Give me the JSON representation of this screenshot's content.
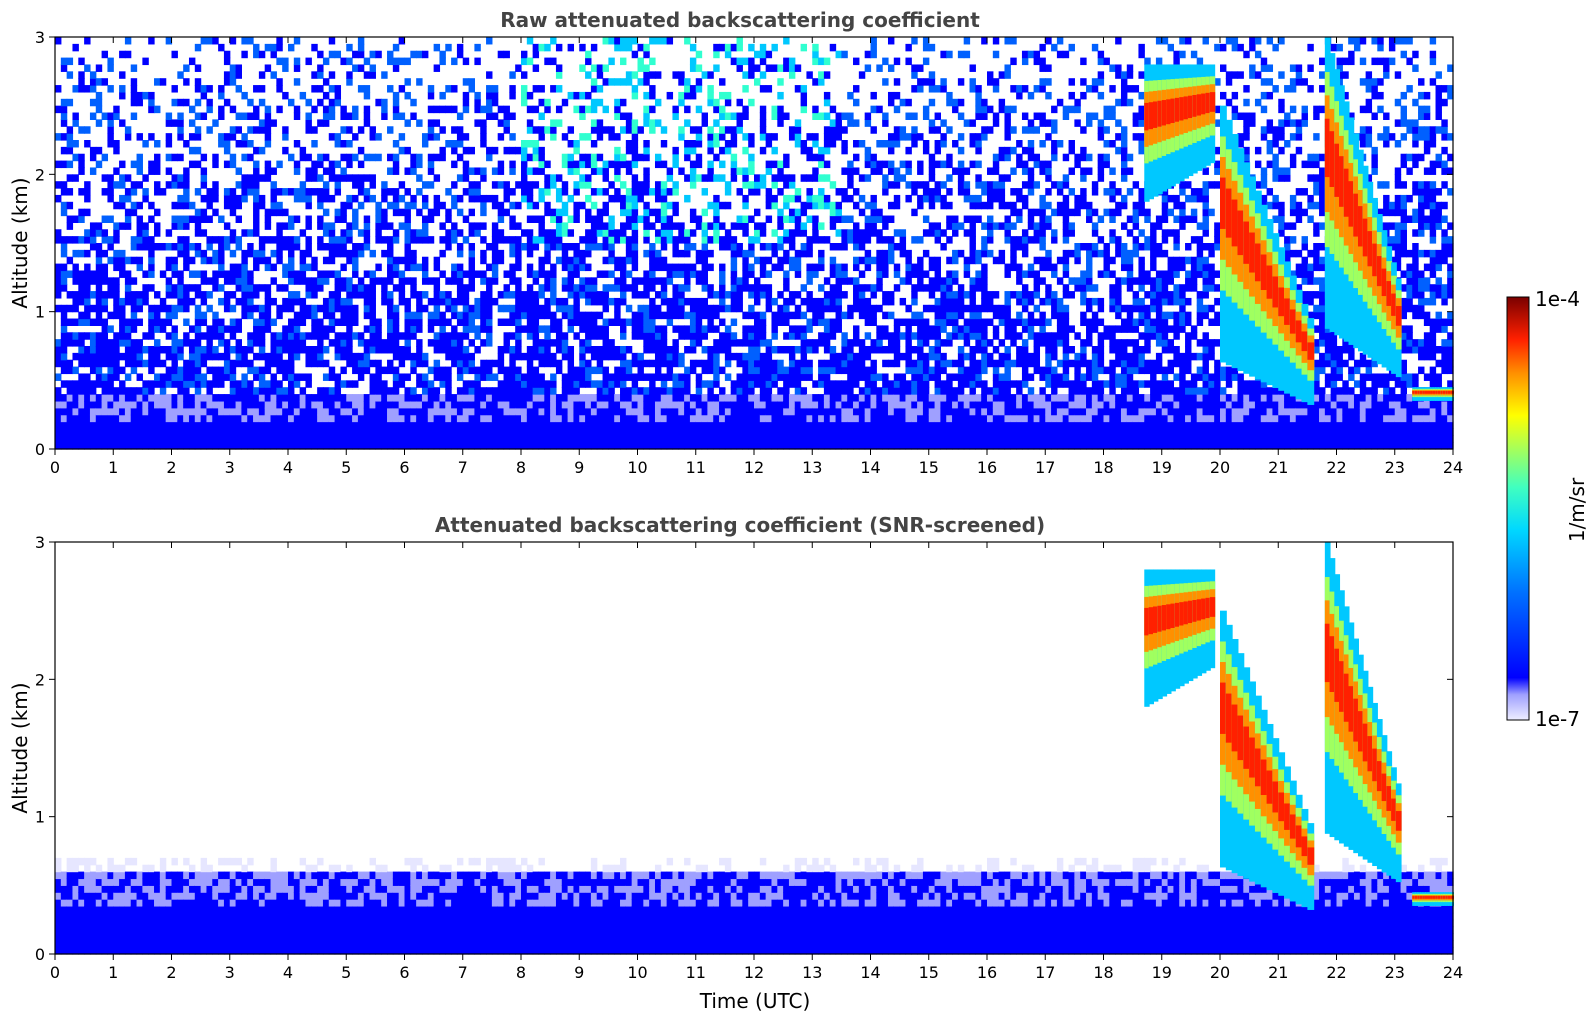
{
  "chart_data": [
    {
      "type": "heatmap",
      "title": "Raw attenuated backscattering coefficient",
      "xlabel": "",
      "ylabel": "Altitude (km)",
      "xlim": [
        0,
        24
      ],
      "ylim": [
        0,
        3
      ],
      "xticks": [
        "0",
        "1",
        "2",
        "3",
        "4",
        "5",
        "6",
        "7",
        "8",
        "9",
        "10",
        "11",
        "12",
        "13",
        "14",
        "15",
        "16",
        "17",
        "18",
        "19",
        "20",
        "21",
        "22",
        "23",
        "24"
      ],
      "yticks": [
        "0",
        "1",
        "2",
        "3"
      ],
      "screened": false,
      "features": [
        {
          "name": "boundary layer",
          "t_start": 0,
          "t_end": 24,
          "alt_top_km": 0.4
        },
        {
          "name": "cloud band 1",
          "t_start": 18.7,
          "t_end": 19.9,
          "alt_km": [
            1.8,
            2.8
          ]
        },
        {
          "name": "cloud band 2",
          "t_start": 20.0,
          "t_end": 21.6,
          "alt_km": [
            0.3,
            2.5
          ]
        },
        {
          "name": "cloud band 3",
          "t_start": 21.8,
          "t_end": 23.1,
          "alt_km": [
            0.5,
            3.0
          ]
        },
        {
          "name": "low cloud",
          "t_start": 23.3,
          "t_end": 24,
          "alt_km": [
            0.35,
            0.45
          ]
        }
      ]
    },
    {
      "type": "heatmap",
      "title": "Attenuated backscattering coefficient (SNR-screened)",
      "xlabel": "Time (UTC)",
      "ylabel": "Altitude (km)",
      "xlim": [
        0,
        24
      ],
      "ylim": [
        0,
        3
      ],
      "xticks": [
        "0",
        "1",
        "2",
        "3",
        "4",
        "5",
        "6",
        "7",
        "8",
        "9",
        "10",
        "11",
        "12",
        "13",
        "14",
        "15",
        "16",
        "17",
        "18",
        "19",
        "20",
        "21",
        "22",
        "23",
        "24"
      ],
      "yticks": [
        "0",
        "1",
        "2",
        "3"
      ],
      "screened": true,
      "features": [
        {
          "name": "boundary layer",
          "t_start": 0,
          "t_end": 24,
          "alt_top_km": 0.6
        },
        {
          "name": "cloud band 1",
          "t_start": 18.7,
          "t_end": 19.9,
          "alt_km": [
            1.8,
            2.8
          ]
        },
        {
          "name": "cloud band 2",
          "t_start": 20.0,
          "t_end": 21.6,
          "alt_km": [
            0.3,
            2.5
          ]
        },
        {
          "name": "cloud band 3",
          "t_start": 21.8,
          "t_end": 23.1,
          "alt_km": [
            0.5,
            3.0
          ]
        },
        {
          "name": "low cloud",
          "t_start": 23.3,
          "t_end": 24,
          "alt_km": [
            0.35,
            0.45
          ]
        }
      ]
    }
  ],
  "colorbar": {
    "label": "1/m/sr",
    "min_label": "1e-7",
    "max_label": "1e-4",
    "scale": "log",
    "colormap": [
      "#ffffff",
      "#e6e6ff",
      "#9fa0ff",
      "#0000ff",
      "#0060ff",
      "#00c8ff",
      "#30ffd0",
      "#a0ff60",
      "#ffff00",
      "#ff9000",
      "#ff2000",
      "#800000"
    ]
  }
}
